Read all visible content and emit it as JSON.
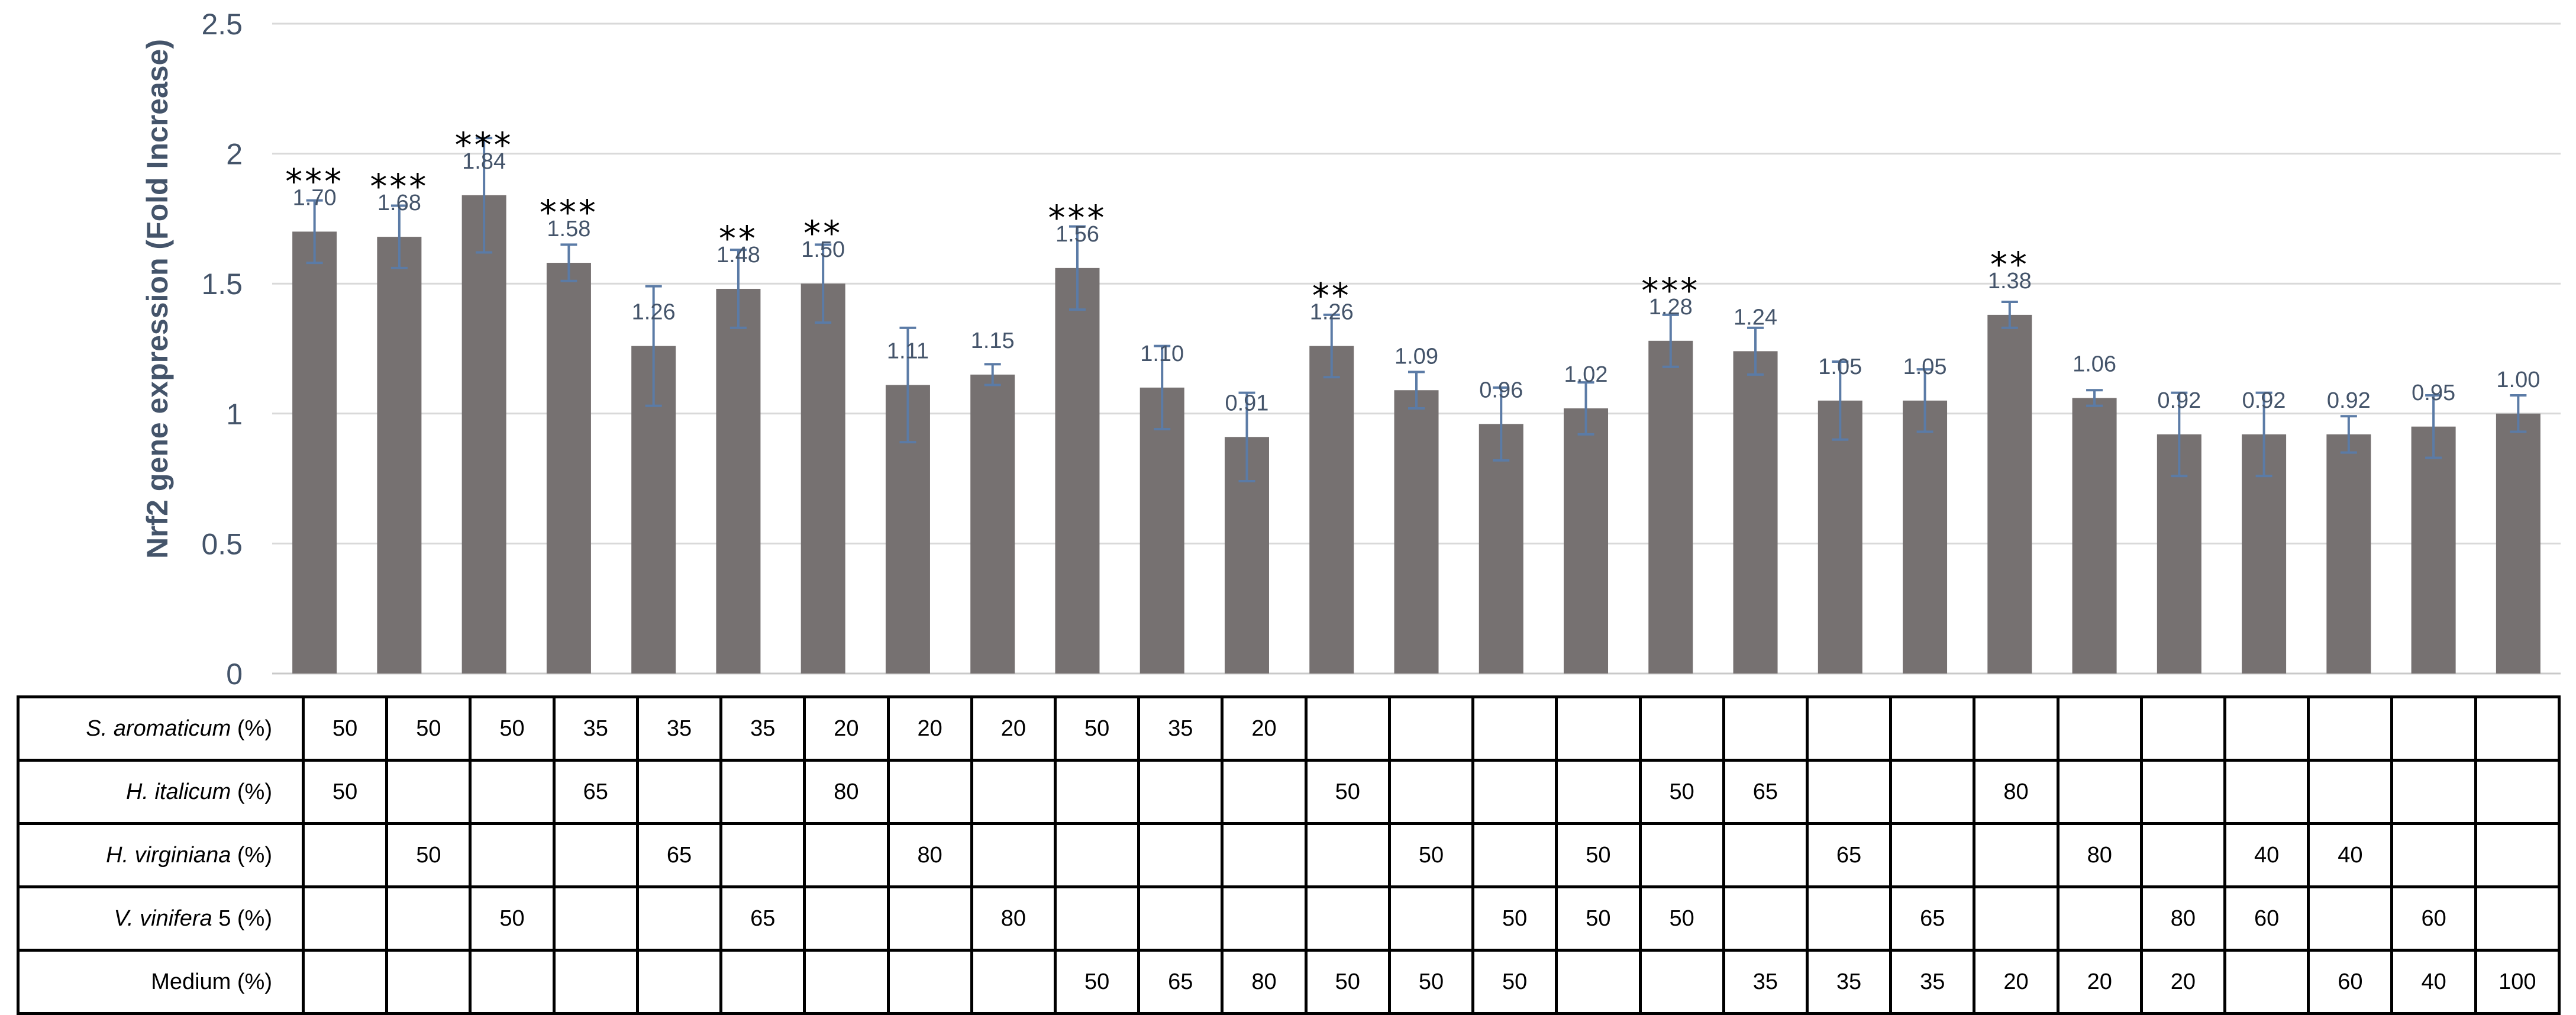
{
  "chart_data": {
    "type": "bar",
    "ylabel": "Nrf2 gene expression (Fold Increase)",
    "ylim": [
      0,
      2.5
    ],
    "yticks": [
      "0",
      "0.5",
      "1",
      "1.5",
      "2",
      "2.5"
    ],
    "ytick_values": [
      0,
      0.5,
      1,
      1.5,
      2,
      2.5
    ],
    "grid": true,
    "bar_color": "#767171",
    "error_color": "#5b7ba6",
    "label_color": "#44546a",
    "values": [
      1.7,
      1.68,
      1.84,
      1.58,
      1.26,
      1.48,
      1.5,
      1.11,
      1.15,
      1.56,
      1.1,
      0.91,
      1.26,
      1.09,
      0.96,
      1.02,
      1.28,
      1.24,
      1.05,
      1.05,
      1.38,
      1.06,
      0.92,
      0.92,
      0.92,
      0.95,
      1.0
    ],
    "value_labels": [
      "1.70",
      "1.68",
      "1.84",
      "1.58",
      "1.26",
      "1.48",
      "1.50",
      "1.11",
      "1.15",
      "1.56",
      "1.10",
      "0.91",
      "1.26",
      "1.09",
      "0.96",
      "1.02",
      "1.28",
      "1.24",
      "1.05",
      "1.05",
      "1.38",
      "1.06",
      "0.92",
      "0.92",
      "0.92",
      "0.95",
      "1.00"
    ],
    "errors": [
      0.12,
      0.12,
      0.22,
      0.07,
      0.23,
      0.15,
      0.15,
      0.22,
      0.04,
      0.16,
      0.16,
      0.17,
      0.12,
      0.07,
      0.14,
      0.1,
      0.1,
      0.09,
      0.15,
      0.12,
      0.05,
      0.03,
      0.16,
      0.16,
      0.07,
      0.12,
      0.07
    ],
    "significance": [
      "***",
      "***",
      "***",
      "***",
      "",
      "**",
      "**",
      "",
      "",
      "***",
      "",
      "",
      "**",
      "",
      "",
      "",
      "***",
      "",
      "",
      "",
      "**",
      "",
      "",
      "",
      "",
      "",
      ""
    ]
  },
  "composition_table": {
    "rows": [
      {
        "name": "S. aromaticum",
        "suffix": " (%)",
        "italic": true,
        "cells": [
          "50",
          "50",
          "50",
          "35",
          "35",
          "35",
          "20",
          "20",
          "20",
          "50",
          "35",
          "20",
          "",
          "",
          "",
          "",
          "",
          "",
          "",
          "",
          "",
          "",
          "",
          "",
          "",
          "",
          ""
        ]
      },
      {
        "name": "H. italicum",
        "suffix": " (%)",
        "italic": true,
        "cells": [
          "50",
          "",
          "",
          "65",
          "",
          "",
          "80",
          "",
          "",
          "",
          "",
          "",
          "50",
          "",
          "",
          "",
          "50",
          "65",
          "",
          "",
          "80",
          "",
          "",
          "",
          "",
          "",
          ""
        ]
      },
      {
        "name": "H. virginiana",
        "suffix": " (%)",
        "italic": true,
        "cells": [
          "",
          "50",
          "",
          "",
          "65",
          "",
          "",
          "80",
          "",
          "",
          "",
          "",
          "",
          "50",
          "",
          "50",
          "",
          "",
          "65",
          "",
          "",
          "80",
          "",
          "40",
          "40",
          "",
          ""
        ]
      },
      {
        "name": "V. vinifera",
        "suffix": " 5 (%)",
        "italic": true,
        "cells": [
          "",
          "",
          "50",
          "",
          "",
          "65",
          "",
          "",
          "80",
          "",
          "",
          "",
          "",
          "",
          "50",
          "50",
          "50",
          "",
          "",
          "65",
          "",
          "",
          "80",
          "60",
          "",
          "60",
          ""
        ]
      },
      {
        "name": "Medium (%)",
        "suffix": "",
        "italic": false,
        "cells": [
          "",
          "",
          "",
          "",
          "",
          "",
          "",
          "",
          "",
          "50",
          "65",
          "80",
          "50",
          "50",
          "50",
          "",
          "",
          "35",
          "35",
          "35",
          "20",
          "20",
          "20",
          "",
          "60",
          "40",
          "100"
        ]
      }
    ]
  }
}
